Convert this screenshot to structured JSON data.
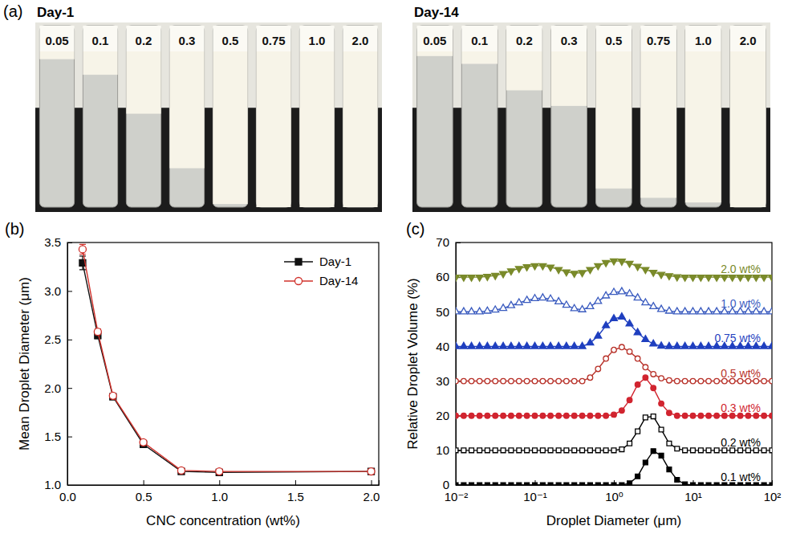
{
  "chart_data": [
    {
      "type": "vials",
      "panel_label": "(a)",
      "title": "Day-1",
      "categories": [
        "0.05",
        "0.1",
        "0.2",
        "0.3",
        "0.5",
        "0.75",
        "1.0",
        "2.0"
      ],
      "values": [
        5,
        15,
        40,
        75,
        98,
        100,
        100,
        100
      ],
      "ylim": [
        0,
        100
      ],
      "tick_labels": false
    },
    {
      "type": "vials",
      "title": "Day-14",
      "categories": [
        "0.05",
        "0.1",
        "0.2",
        "0.3",
        "0.5",
        "0.75",
        "1.0",
        "2.0"
      ],
      "values": [
        3,
        8,
        25,
        35,
        88,
        94,
        97,
        100
      ],
      "ylim": [
        0,
        100
      ],
      "tick_labels": false
    },
    {
      "type": "line",
      "panel_label": "(b)",
      "x_label": "CNC concentration (wt%)",
      "y_label": "Mean Droplet Diameter (μm)",
      "x": [
        0.1,
        0.2,
        0.3,
        0.5,
        0.75,
        1.0,
        2.0
      ],
      "series": [
        {
          "name": "Day-1",
          "color": "#111111",
          "marker": "square",
          "values": [
            3.29,
            2.54,
            1.91,
            1.42,
            1.14,
            1.13,
            1.14
          ],
          "errors": [
            0.07,
            0.03,
            0.02,
            0.02,
            0.02,
            0.02,
            0.01
          ]
        },
        {
          "name": "Day-14",
          "color": "#d0302a",
          "marker": "circle-open",
          "values": [
            3.43,
            2.58,
            1.92,
            1.44,
            1.15,
            1.14,
            1.14
          ],
          "errors": [
            0.05,
            0.03,
            0.02,
            0.02,
            0.02,
            0.02,
            0.01
          ]
        }
      ],
      "xlim": [
        0,
        2.05
      ],
      "xticks": [
        {
          "value": 0,
          "label": "0.0"
        },
        {
          "value": 0.5,
          "label": "0.5"
        },
        {
          "value": 1,
          "label": "1.0"
        },
        {
          "value": 1.5,
          "label": "1.5"
        },
        {
          "value": 2,
          "label": "2.0"
        }
      ],
      "ylim": [
        1.0,
        3.5
      ],
      "yticks": [
        {
          "value": 1,
          "label": "1.0"
        },
        {
          "value": 1.5,
          "label": "1.5"
        },
        {
          "value": 2,
          "label": "2.0"
        },
        {
          "value": 2.5,
          "label": "2.5"
        },
        {
          "value": 3,
          "label": "3.0"
        },
        {
          "value": 3.5,
          "label": "3.5"
        }
      ],
      "legend": "upper right"
    },
    {
      "type": "line",
      "panel_label": "(c)",
      "log": "x",
      "x_label": "Droplet Diameter (μm)",
      "y_label": "Relative Droplet Volume (%)",
      "x": [
        0.01,
        0.0126,
        0.0158,
        0.02,
        0.0251,
        0.0316,
        0.0398,
        0.0501,
        0.0631,
        0.0794,
        0.1,
        0.126,
        0.158,
        0.2,
        0.251,
        0.316,
        0.398,
        0.501,
        0.631,
        0.794,
        1,
        1.26,
        1.58,
        2,
        2.51,
        3.16,
        3.98,
        5.01,
        6.31,
        7.94,
        10,
        12.6,
        15.8,
        20,
        25.1,
        31.6,
        39.8,
        50.1,
        63.1,
        79.4,
        100
      ],
      "series": [
        {
          "name": "0.1 wt%",
          "color": "#000000",
          "marker": "square",
          "values": [
            0,
            0,
            0,
            0,
            0,
            0,
            0,
            0,
            0,
            0,
            0,
            0,
            0,
            0,
            0,
            0,
            0,
            0,
            0,
            0,
            0,
            0,
            0.5,
            2.5,
            6.5,
            9.8,
            8.5,
            4.5,
            1.5,
            0.2,
            0,
            0,
            0,
            0,
            0,
            0,
            0,
            0,
            0,
            0,
            0
          ]
        },
        {
          "name": "0.2 wt%",
          "color": "#000000",
          "marker": "square-open",
          "values": [
            10,
            10,
            10,
            10,
            10,
            10,
            10,
            10,
            10,
            10,
            10,
            10,
            10,
            10,
            10,
            10,
            10,
            10,
            10,
            10,
            10,
            10.3,
            12,
            15.5,
            19.5,
            19.8,
            16,
            12,
            10.5,
            10,
            10,
            10,
            10,
            10,
            10,
            10,
            10,
            10,
            10,
            10,
            10
          ]
        },
        {
          "name": "0.3 wt%",
          "color": "#d1242f",
          "marker": "circle",
          "values": [
            20,
            20,
            20,
            20,
            20,
            20,
            20,
            20,
            20,
            20,
            20,
            20,
            20,
            20,
            20,
            20,
            20,
            20,
            20,
            20,
            20.3,
            21.5,
            24.5,
            29,
            31,
            28,
            23.5,
            20.8,
            20,
            20,
            20,
            20,
            20,
            20,
            20,
            20,
            20,
            20,
            20,
            20,
            20
          ]
        },
        {
          "name": "0.5 wt%",
          "color": "#b8322a",
          "marker": "circle-open",
          "values": [
            30,
            30,
            30,
            30,
            30,
            30,
            30,
            30,
            30,
            30,
            30,
            30,
            30,
            30,
            30,
            30,
            30,
            31,
            33.5,
            36.5,
            39,
            39.8,
            38.5,
            36.5,
            34,
            32,
            30.8,
            30.2,
            30,
            30,
            30,
            30,
            30,
            30,
            30,
            30,
            30,
            30,
            30,
            30,
            30
          ]
        },
        {
          "name": "0.75 wt%",
          "color": "#1f3fbf",
          "marker": "triangle-up",
          "values": [
            40,
            40,
            40,
            40,
            40,
            40,
            40,
            40,
            40,
            40,
            40,
            40,
            40,
            40,
            40,
            40,
            40,
            41,
            43,
            46,
            48,
            48.5,
            46.5,
            44,
            42,
            40.7,
            40.1,
            40,
            40,
            40,
            40,
            40,
            40,
            40,
            40,
            40,
            40,
            40,
            40,
            40,
            40
          ]
        },
        {
          "name": "1.0 wt%",
          "color": "#3a5bbf",
          "marker": "triangle-up-open",
          "values": [
            50,
            50,
            50,
            50,
            50.2,
            50.5,
            51,
            51.8,
            52.6,
            53.3,
            53.8,
            54,
            53.7,
            52.9,
            51.9,
            50.9,
            50.6,
            51.5,
            53,
            54.6,
            55.6,
            55.8,
            55.2,
            54,
            52.6,
            51.5,
            50.7,
            50.2,
            50,
            50,
            50,
            50,
            50,
            50,
            50,
            50,
            50,
            50,
            50,
            50,
            50
          ]
        },
        {
          "name": "2.0 wt%",
          "color": "#7a8a2a",
          "marker": "triangle-down",
          "values": [
            60,
            60,
            60,
            60,
            60.2,
            60.5,
            61,
            61.8,
            62.5,
            63,
            63.3,
            63.3,
            62.9,
            62.2,
            61.5,
            61.1,
            61.3,
            62.2,
            63.3,
            64.2,
            64.7,
            64.6,
            64,
            63.1,
            62.2,
            61.4,
            60.8,
            60.4,
            60.1,
            60,
            60,
            60,
            60,
            60,
            60,
            60,
            60,
            60,
            60,
            60,
            60
          ]
        }
      ],
      "xlim": [
        0.01,
        100
      ],
      "xticks": [
        {
          "value": 0.01,
          "label": "10⁻²"
        },
        {
          "value": 0.1,
          "label": "10⁻¹"
        },
        {
          "value": 1,
          "label": "10⁰"
        },
        {
          "value": 10,
          "label": "10¹"
        },
        {
          "value": 100,
          "label": "10²"
        }
      ],
      "ylim": [
        0,
        70
      ],
      "yticks": [
        0,
        10,
        20,
        30,
        40,
        50,
        60,
        70
      ]
    }
  ]
}
